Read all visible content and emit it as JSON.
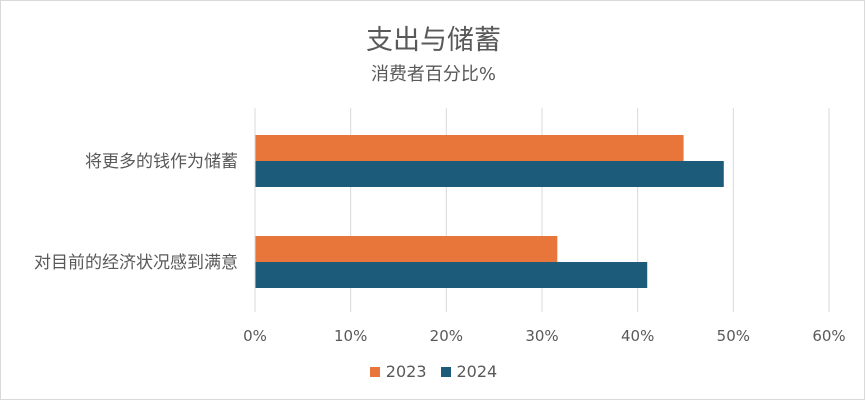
{
  "chart_data": {
    "type": "bar",
    "orientation": "horizontal",
    "title": "支出与储蓄",
    "subtitle": "消费者百分比%",
    "categories": [
      "将更多的钱作为储蓄",
      "对目前的经济状况感到满意"
    ],
    "series": [
      {
        "name": "2023",
        "values": [
          44.8,
          31.6
        ],
        "color": "#e8763a"
      },
      {
        "name": "2024",
        "values": [
          49.0,
          41.0
        ],
        "color": "#1d5b7a"
      }
    ],
    "xlim": [
      0,
      60
    ],
    "xticks": [
      "0%",
      "10%",
      "20%",
      "30%",
      "40%",
      "50%",
      "60%"
    ],
    "grid": true,
    "legend_position": "bottom"
  }
}
